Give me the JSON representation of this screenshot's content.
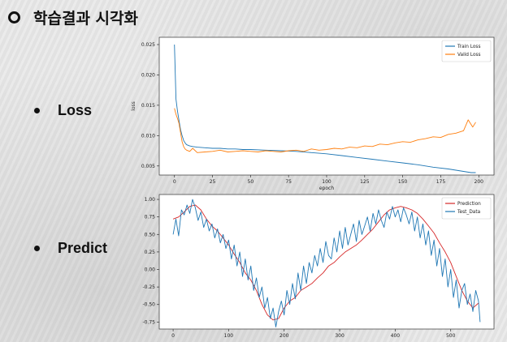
{
  "slide": {
    "title": "학습결과 시각화",
    "bullets": [
      {
        "label": "Loss"
      },
      {
        "label": "Predict"
      }
    ]
  },
  "chart_data": [
    {
      "type": "line",
      "xlabel": "epoch",
      "ylabel": "loss",
      "xlim": [
        -10,
        210
      ],
      "ylim": [
        0.0035,
        0.0262
      ],
      "xticks": [
        0,
        25,
        50,
        75,
        100,
        125,
        150,
        175,
        200
      ],
      "xtick_labels": [
        "0",
        "25",
        "50",
        "75",
        "100",
        "125",
        "150",
        "175",
        "200"
      ],
      "yticks": [
        0.005,
        0.01,
        0.015,
        0.02,
        0.025
      ],
      "ytick_labels": [
        "0.005",
        "0.010",
        "0.015",
        "0.020",
        "0.025"
      ],
      "legend_position": "top-right",
      "series": [
        {
          "name": "Train Loss",
          "color": "#1f77b4",
          "x": [
            0,
            1,
            2,
            3,
            4,
            5,
            6,
            7,
            8,
            10,
            12,
            15,
            20,
            25,
            30,
            35,
            40,
            45,
            50,
            60,
            70,
            80,
            90,
            100,
            110,
            120,
            130,
            140,
            150,
            160,
            170,
            180,
            190,
            195,
            198
          ],
          "y": [
            0.025,
            0.016,
            0.014,
            0.0125,
            0.011,
            0.01,
            0.0092,
            0.0088,
            0.0085,
            0.0083,
            0.0082,
            0.0081,
            0.008,
            0.0079,
            0.0079,
            0.0078,
            0.0078,
            0.0077,
            0.0077,
            0.0076,
            0.0075,
            0.0074,
            0.0072,
            0.007,
            0.0067,
            0.0064,
            0.0061,
            0.0058,
            0.0055,
            0.0052,
            0.0048,
            0.0045,
            0.0041,
            0.0039,
            0.0039
          ]
        },
        {
          "name": "Valid Loss",
          "color": "#ff7f0e",
          "x": [
            0,
            1,
            2,
            3,
            4,
            5,
            6,
            7,
            8,
            10,
            12,
            15,
            20,
            25,
            30,
            35,
            40,
            45,
            50,
            55,
            60,
            65,
            70,
            75,
            80,
            85,
            90,
            95,
            100,
            105,
            110,
            115,
            120,
            125,
            130,
            135,
            140,
            145,
            150,
            155,
            160,
            165,
            170,
            175,
            180,
            185,
            190,
            193,
            196,
            198
          ],
          "y": [
            0.0145,
            0.0135,
            0.0128,
            0.012,
            0.0105,
            0.009,
            0.0082,
            0.0078,
            0.0076,
            0.0074,
            0.0079,
            0.0072,
            0.0073,
            0.0074,
            0.0076,
            0.0073,
            0.0074,
            0.0075,
            0.0074,
            0.0073,
            0.0075,
            0.0074,
            0.0073,
            0.0075,
            0.0076,
            0.0074,
            0.0078,
            0.0076,
            0.0077,
            0.0079,
            0.0078,
            0.0081,
            0.008,
            0.0083,
            0.0082,
            0.0086,
            0.0085,
            0.0088,
            0.009,
            0.0089,
            0.0093,
            0.0095,
            0.0098,
            0.0097,
            0.0102,
            0.0104,
            0.0108,
            0.0126,
            0.0114,
            0.0122
          ]
        }
      ]
    },
    {
      "type": "line",
      "xlabel": "",
      "ylabel": "",
      "xlim": [
        -25,
        578
      ],
      "ylim": [
        -0.85,
        1.07
      ],
      "xticks": [
        0,
        100,
        200,
        300,
        400,
        500
      ],
      "xtick_labels": [
        "0",
        "100",
        "200",
        "300",
        "400",
        "500"
      ],
      "yticks": [
        -0.75,
        -0.5,
        -0.25,
        0.0,
        0.25,
        0.5,
        0.75,
        1.0
      ],
      "ytick_labels": [
        "-0.75",
        "-0.50",
        "-0.25",
        "0.00",
        "0.25",
        "0.50",
        "0.75",
        "1.00"
      ],
      "legend_position": "top-right",
      "series": [
        {
          "name": "Prediction",
          "color": "#d62728",
          "x": [
            0,
            10,
            20,
            30,
            40,
            50,
            60,
            70,
            80,
            90,
            100,
            110,
            120,
            130,
            140,
            150,
            160,
            170,
            180,
            190,
            200,
            210,
            220,
            230,
            240,
            250,
            260,
            270,
            280,
            290,
            300,
            310,
            320,
            330,
            340,
            350,
            360,
            370,
            380,
            390,
            400,
            410,
            420,
            430,
            440,
            450,
            460,
            470,
            480,
            490,
            500,
            510,
            520,
            530,
            540,
            550
          ],
          "y": [
            0.72,
            0.75,
            0.82,
            0.9,
            0.92,
            0.85,
            0.72,
            0.62,
            0.55,
            0.45,
            0.35,
            0.22,
            0.1,
            -0.05,
            -0.15,
            -0.3,
            -0.5,
            -0.65,
            -0.72,
            -0.7,
            -0.55,
            -0.45,
            -0.4,
            -0.3,
            -0.25,
            -0.2,
            -0.12,
            -0.05,
            0.05,
            0.1,
            0.18,
            0.25,
            0.3,
            0.35,
            0.42,
            0.5,
            0.58,
            0.68,
            0.78,
            0.85,
            0.88,
            0.9,
            0.88,
            0.85,
            0.8,
            0.72,
            0.62,
            0.52,
            0.38,
            0.25,
            0.1,
            -0.1,
            -0.3,
            -0.45,
            -0.55,
            -0.48
          ]
        },
        {
          "name": "Test_Data",
          "color": "#1f77b4",
          "x": [
            0,
            5,
            10,
            15,
            20,
            25,
            30,
            35,
            40,
            45,
            50,
            55,
            60,
            65,
            70,
            75,
            80,
            85,
            90,
            95,
            100,
            105,
            110,
            115,
            120,
            125,
            130,
            135,
            140,
            145,
            150,
            155,
            160,
            165,
            170,
            175,
            180,
            185,
            190,
            195,
            200,
            205,
            210,
            215,
            220,
            225,
            230,
            235,
            240,
            245,
            250,
            255,
            260,
            265,
            270,
            275,
            280,
            285,
            290,
            295,
            300,
            305,
            310,
            315,
            320,
            325,
            330,
            335,
            340,
            345,
            350,
            355,
            360,
            365,
            370,
            375,
            380,
            385,
            390,
            395,
            400,
            405,
            410,
            415,
            420,
            425,
            430,
            435,
            440,
            445,
            450,
            455,
            460,
            465,
            470,
            475,
            480,
            485,
            490,
            495,
            500,
            505,
            510,
            515,
            520,
            525,
            530,
            535,
            540,
            545,
            550,
            553
          ],
          "y": [
            0.5,
            0.72,
            0.48,
            0.85,
            0.78,
            0.92,
            0.8,
            1.0,
            0.88,
            0.7,
            0.82,
            0.6,
            0.72,
            0.55,
            0.65,
            0.45,
            0.58,
            0.38,
            0.5,
            0.3,
            0.42,
            0.15,
            0.35,
            0.05,
            0.25,
            -0.1,
            0.15,
            -0.15,
            0.05,
            -0.3,
            -0.12,
            -0.4,
            -0.25,
            -0.55,
            -0.4,
            -0.7,
            -0.55,
            -0.82,
            -0.6,
            -0.45,
            -0.65,
            -0.3,
            -0.5,
            -0.2,
            -0.42,
            -0.05,
            -0.3,
            0.05,
            -0.2,
            0.1,
            -0.05,
            0.2,
            0.05,
            0.3,
            0.1,
            0.4,
            0.2,
            0.15,
            0.45,
            0.25,
            0.55,
            0.3,
            0.6,
            0.35,
            0.5,
            0.65,
            0.4,
            0.7,
            0.5,
            0.62,
            0.75,
            0.55,
            0.8,
            0.65,
            0.85,
            0.7,
            0.6,
            0.82,
            0.72,
            0.9,
            0.75,
            0.85,
            0.68,
            0.88,
            0.78,
            0.65,
            0.82,
            0.55,
            0.75,
            0.45,
            0.65,
            0.35,
            0.55,
            0.2,
            0.42,
            0.05,
            0.3,
            -0.1,
            0.15,
            -0.25,
            0.0,
            -0.4,
            -0.15,
            -0.55,
            -0.3,
            -0.2,
            -0.5,
            -0.35,
            -0.6,
            -0.3,
            -0.45,
            -0.75
          ]
        }
      ]
    }
  ]
}
